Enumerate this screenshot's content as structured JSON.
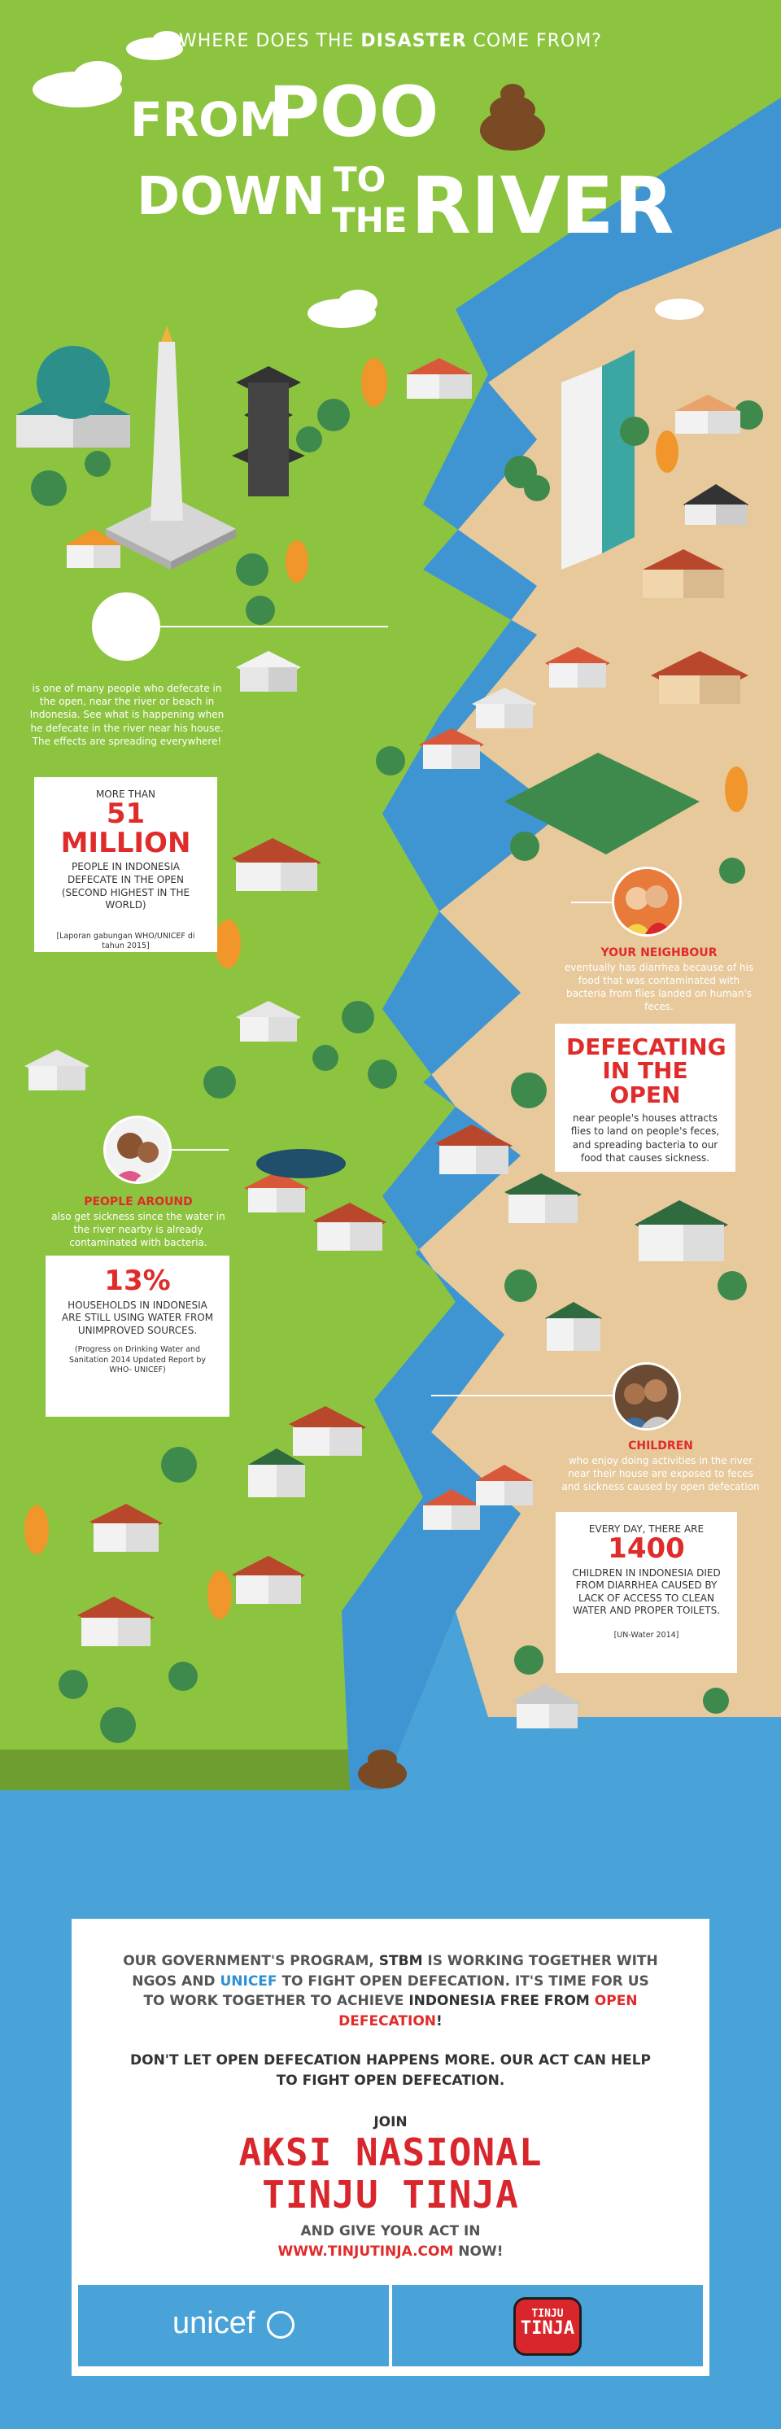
{
  "header": {
    "question_pre": "WHERE DOES THE ",
    "question_bold": "DISASTER",
    "question_post": " COME FROM?",
    "title_line1a": "From",
    "title_line1b": "Poo",
    "title_line2a": "Down",
    "title_line2b": "to",
    "title_line3a": "the",
    "title_line3b": "River"
  },
  "intro_text": "is one of many people who defecate in the open, near the river or beach in Indonesia. See what is happening when he defecate in the river near his house. The effects are spreading everywhere!",
  "card_51m": {
    "pre": "MORE THAN",
    "big": "51 MILLION",
    "desc": "PEOPLE IN INDONESIA DEFECATE IN THE OPEN (SECOND HIGHEST IN THE WORLD)",
    "source": "[Laporan gabungan WHO/UNICEF di tahun 2015]"
  },
  "neighbour": {
    "head": "YOUR NEIGHBOUR",
    "text": "eventually has diarrhea because of his food that was contaminated with bacteria from flies landed on human's feces."
  },
  "card_defecating": {
    "big": "DEFECATING IN THE OPEN",
    "desc": "near people's houses attracts flies to land on people's feces, and spreading bacteria to our food that causes sickness."
  },
  "people_around": {
    "head": "PEOPLE AROUND",
    "text": "also get sickness since the water in the river nearby is already contaminated with bacteria."
  },
  "card_13": {
    "big": "13%",
    "desc": "HOUSEHOLDS IN INDONESIA ARE STILL USING WATER FROM UNIMPROVED SOURCES.",
    "source": "(Progress on Drinking Water and Sanitation 2014 Updated Report by WHO- UNICEF)"
  },
  "children": {
    "head": "CHILDREN",
    "text": "who enjoy doing activities in the river near their house are exposed to feces and sickness caused by open defecation"
  },
  "card_1400": {
    "pre": "EVERY DAY, THERE ARE",
    "big": "1400",
    "desc": "CHILDREN IN INDONESIA DIED FROM DIARRHEA CAUSED BY LACK OF ACCESS TO CLEAN WATER AND PROPER TOILETS.",
    "source": "[UN-Water 2014]"
  },
  "footer": {
    "p1_a": "OUR GOVERNMENT'S PROGRAM, ",
    "p1_b": "STBM",
    "p1_c": " IS WORKING TOGETHER WITH NGOS AND ",
    "p1_d": "UNICEF",
    "p1_e": " TO FIGHT OPEN DEFECATION. IT'S TIME FOR US TO WORK TOGETHER TO ACHIEVE ",
    "p1_f": "INDONESIA FREE FROM",
    "p1_g": "OPEN DEFECATION",
    "p1_h": "!",
    "p2": "DON'T LET OPEN DEFECATION HAPPENS MORE. OUR ACT CAN HELP TO FIGHT OPEN DEFECATION.",
    "join": "JOIN",
    "aksi_line1": "AKSI NASIONAL",
    "aksi_line2": "TINJU TINJA",
    "give_a": "AND GIVE YOUR ACT IN",
    "give_url": "WWW.TINJUTINJA.COM",
    "give_b": " NOW!",
    "unicef_logo": "unicef",
    "tinju_logo_line1": "TINJU",
    "tinju_logo_line2": "TINJA"
  },
  "colors": {
    "grass": "#8cc43f",
    "sand": "#e7c99b",
    "river": "#4aa3d8",
    "accent_red": "#e02b2b"
  }
}
